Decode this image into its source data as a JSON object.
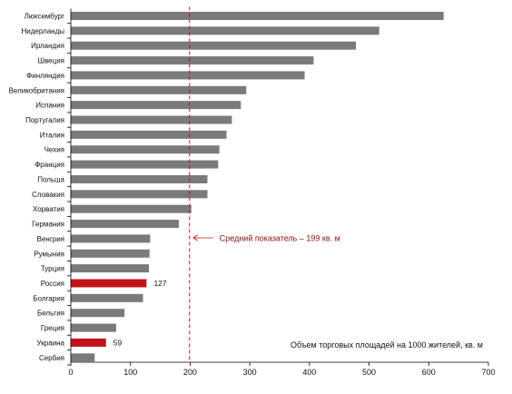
{
  "chart_data": {
    "type": "bar",
    "orientation": "horizontal",
    "categories": [
      "Люксембург",
      "Нидерланды",
      "Ирландия",
      "Швеция",
      "Финляндия",
      "Великобритания",
      "Испания",
      "Португалия",
      "Италия",
      "Чехия",
      "Франция",
      "Польша",
      "Словакия",
      "Хорватия",
      "Германия",
      "Венгрия",
      "Румыния",
      "Турция",
      "Россия",
      "Болгария",
      "Бельгия",
      "Греция",
      "Украина",
      "Сербия"
    ],
    "values": [
      625,
      517,
      478,
      407,
      392,
      294,
      285,
      270,
      261,
      249,
      247,
      229,
      229,
      202,
      181,
      133,
      132,
      131,
      127,
      121,
      90,
      76,
      59,
      40
    ],
    "highlighted": [
      "Россия",
      "Украина"
    ],
    "value_labels": {
      "Россия": "127",
      "Украина": "59"
    },
    "colors": {
      "bar": "#7a7a7a",
      "highlight": "#c0141c",
      "reference_line": "#c0141c",
      "annotation_text": "#8a0c12"
    },
    "xlim": [
      0,
      700
    ],
    "xticks": [
      0,
      100,
      200,
      300,
      400,
      500,
      600,
      700
    ],
    "reference_line": {
      "value": 199,
      "label": "Средний показатель – 199 кв. м",
      "style": "dashed"
    },
    "note": "Объем торговых площадей на 1000 жителей, кв. м",
    "grid": false,
    "legend": "none"
  }
}
